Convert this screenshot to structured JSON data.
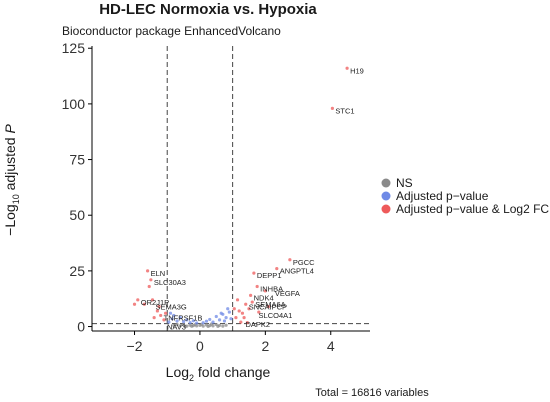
{
  "chart_data": {
    "type": "scatter",
    "title": "HD-LEC Normoxia vs. Hypoxia",
    "subtitle": "Bioconductor package EnhancedVolcano",
    "xlabel_prefix": "Log",
    "xlabel_sub": "2",
    "xlabel_suffix": " fold change",
    "ylabel_prefix": "−Log",
    "ylabel_sub": "10",
    "ylabel_suffix": " adjusted ",
    "ylabel_italic": "P",
    "caption": "Total = 16816 variables",
    "xlim": [
      -3.3,
      5.2
    ],
    "ylim": [
      -2,
      126
    ],
    "x_ticks": [
      -2,
      0,
      2,
      4
    ],
    "y_ticks": [
      0,
      25,
      50,
      75,
      100,
      125
    ],
    "x_tick_labels": [
      "−2",
      "0",
      "2",
      "4"
    ],
    "y_tick_labels": [
      "0",
      "25",
      "50",
      "75",
      "100",
      "125"
    ],
    "fc_cutoffs": [
      -1,
      1
    ],
    "p_cutoff_y": 1.3,
    "legend_placement": "right",
    "legend": [
      {
        "name": "NS",
        "color": "#8a8a8a"
      },
      {
        "name": "Adjusted p−value",
        "color": "#6f8ae6"
      },
      {
        "name": "Adjusted p−value & Log2 FC",
        "color": "#ee5a5a"
      }
    ],
    "series": [
      {
        "name": "NS",
        "color": "#8a8a8a",
        "points": [
          [
            -0.8,
            0.5
          ],
          [
            -0.6,
            0.3
          ],
          [
            -0.5,
            0.8
          ],
          [
            -0.4,
            0.2
          ],
          [
            -0.3,
            0.6
          ],
          [
            -0.2,
            0.4
          ],
          [
            -0.1,
            0.3
          ],
          [
            0,
            0.5
          ],
          [
            0.1,
            0.2
          ],
          [
            0.2,
            0.7
          ],
          [
            0.3,
            0.4
          ],
          [
            0.4,
            0.3
          ],
          [
            0.5,
            0.9
          ],
          [
            0.6,
            0.5
          ],
          [
            0.7,
            0.2
          ],
          [
            0.8,
            0.6
          ],
          [
            -0.7,
            1.0
          ],
          [
            0.35,
            1.1
          ],
          [
            -0.15,
            0.9
          ],
          [
            0.05,
            1.0
          ],
          [
            -0.45,
            0.1
          ],
          [
            0.55,
            0.1
          ],
          [
            -0.25,
            0.15
          ],
          [
            0.25,
            0.05
          ]
        ]
      },
      {
        "name": "Adjusted p−value",
        "color": "#6f8ae6",
        "points": [
          [
            -0.95,
            2.0
          ],
          [
            -0.85,
            3.5
          ],
          [
            -0.7,
            2.5
          ],
          [
            -0.6,
            4.0
          ],
          [
            -0.5,
            2.2
          ],
          [
            -0.4,
            3.0
          ],
          [
            -0.3,
            1.8
          ],
          [
            -0.2,
            2.6
          ],
          [
            -0.1,
            1.6
          ],
          [
            0.1,
            1.7
          ],
          [
            0.2,
            2.4
          ],
          [
            0.3,
            3.2
          ],
          [
            0.4,
            2.0
          ],
          [
            0.5,
            4.5
          ],
          [
            0.6,
            3.0
          ],
          [
            0.7,
            5.5
          ],
          [
            0.8,
            4.0
          ],
          [
            0.9,
            6.5
          ],
          [
            0.95,
            3.5
          ],
          [
            0.85,
            8.0
          ],
          [
            0.75,
            2.5
          ],
          [
            0.65,
            6.0
          ],
          [
            -0.8,
            5.0
          ],
          [
            -0.9,
            6.0
          ]
        ]
      },
      {
        "name": "Adjusted p−value & Log2 FC",
        "color": "#ee5a5a",
        "points": [
          [
            4.5,
            116
          ],
          [
            4.05,
            98
          ],
          [
            2.75,
            30
          ],
          [
            2.35,
            26
          ],
          [
            1.65,
            24
          ],
          [
            1.75,
            18
          ],
          [
            1.55,
            14
          ],
          [
            1.4,
            10
          ],
          [
            1.5,
            8
          ],
          [
            1.3,
            6
          ],
          [
            1.35,
            4
          ],
          [
            -1.6,
            25
          ],
          [
            -1.5,
            21
          ],
          [
            -1.55,
            18
          ],
          [
            -1.9,
            12
          ],
          [
            -1.7,
            10
          ],
          [
            -1.45,
            12
          ],
          [
            -1.3,
            7
          ],
          [
            -1.2,
            5
          ],
          [
            -1.1,
            3
          ],
          [
            1.1,
            4
          ],
          [
            1.2,
            7
          ],
          [
            1.6,
            11
          ],
          [
            2.0,
            16
          ],
          [
            1.25,
            2
          ],
          [
            1.45,
            1.8
          ],
          [
            1.8,
            6.5
          ],
          [
            2.1,
            9
          ],
          [
            -1.4,
            4
          ],
          [
            -1.25,
            9
          ],
          [
            -1.05,
            6
          ],
          [
            -2.0,
            10
          ],
          [
            1.15,
            12
          ],
          [
            1.05,
            8
          ]
        ]
      }
    ],
    "gene_labels": [
      {
        "label": "H19",
        "x": 4.5,
        "y": 116
      },
      {
        "label": "STC1",
        "x": 4.05,
        "y": 98
      },
      {
        "label": "PGCC",
        "x": 2.75,
        "y": 30
      },
      {
        "label": "ANGPTL4",
        "x": 2.35,
        "y": 26
      },
      {
        "label": "DEPP1",
        "x": 1.65,
        "y": 24
      },
      {
        "label": "VEGFA",
        "x": 2.2,
        "y": 16
      },
      {
        "label": "INHBA",
        "x": 1.75,
        "y": 18
      },
      {
        "label": "NDK4",
        "x": 1.55,
        "y": 14
      },
      {
        "label": "SEMA6A",
        "x": 1.6,
        "y": 11
      },
      {
        "label": "SNCAIPCP",
        "x": 1.4,
        "y": 10
      },
      {
        "label": "SLCO4A1",
        "x": 1.7,
        "y": 6
      },
      {
        "label": "DAPK2",
        "x": 1.3,
        "y": 2
      },
      {
        "label": "ELN",
        "x": -1.6,
        "y": 25
      },
      {
        "label": "SLC30A3",
        "x": -1.5,
        "y": 21
      },
      {
        "label": "OR2J1P",
        "x": -1.9,
        "y": 12
      },
      {
        "label": "SEMA3G",
        "x": -1.45,
        "y": 10
      },
      {
        "label": "TNFRSF1B",
        "x": -1.2,
        "y": 5
      },
      {
        "label": "NAV3",
        "x": -1.1,
        "y": 1
      }
    ]
  }
}
